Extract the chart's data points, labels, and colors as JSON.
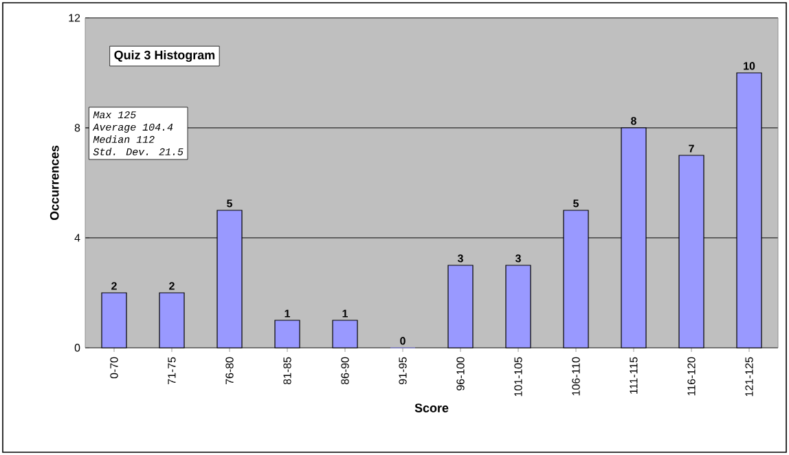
{
  "chart_data": {
    "type": "bar",
    "title": "Quiz 3 Histogram",
    "xlabel": "Score",
    "ylabel": "Occurrences",
    "categories": [
      "0-70",
      "71-75",
      "76-80",
      "81-85",
      "86-90",
      "91-95",
      "96-100",
      "101-105",
      "106-110",
      "111-115",
      "116-120",
      "121-125"
    ],
    "values": [
      2,
      2,
      5,
      1,
      1,
      0,
      3,
      3,
      5,
      8,
      7,
      10
    ],
    "color": "#9999ff",
    "ylim": [
      0,
      12
    ],
    "yticks": [
      0,
      4,
      8,
      12
    ],
    "grid": "y",
    "data_labels": true,
    "annotations": [
      "Max 125",
      "Average 104.4",
      "Median 112",
      "Std. Dev. 21.5"
    ]
  }
}
